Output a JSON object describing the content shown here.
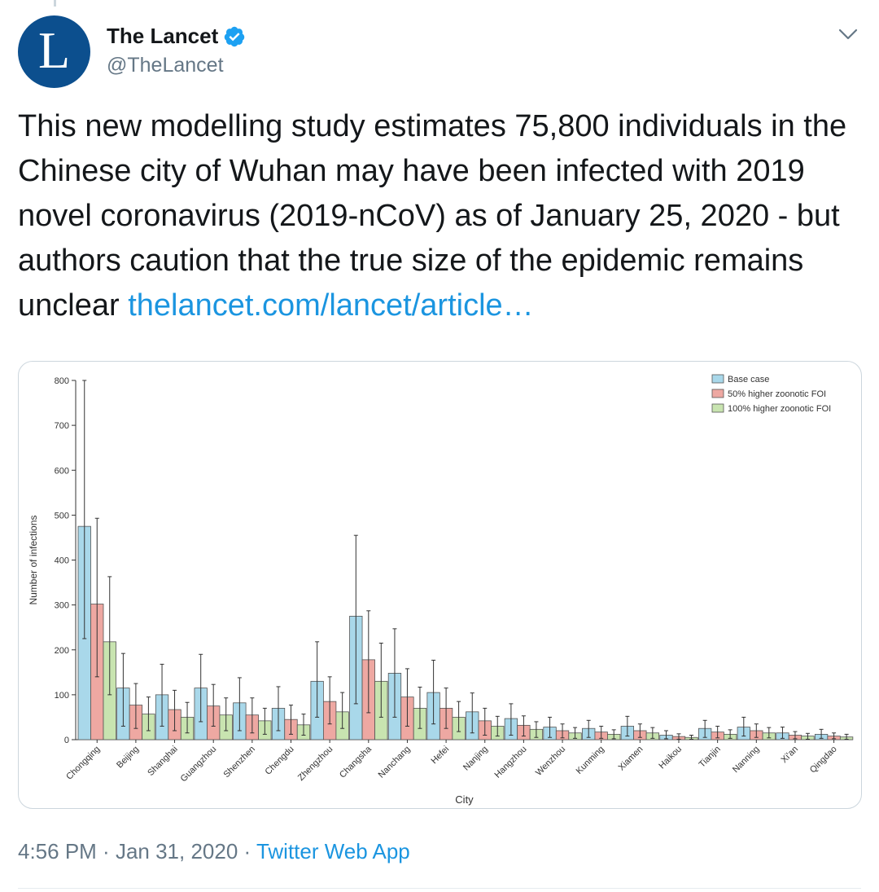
{
  "tweet": {
    "avatar_letter": "L",
    "display_name": "The Lancet",
    "handle": "@TheLancet",
    "verified": true,
    "text": "This new modelling study estimates 75,800 individuals in the Chinese city of Wuhan may have been infected with 2019 novel coronavirus (2019-nCoV) as of January 25, 2020 - but authors caution that the true size of the epidemic remains unclear ",
    "link_text": "thelancet.com/lancet/article…",
    "time": "4:56 PM",
    "separator": " · ",
    "date": "Jan 31, 2020",
    "source": "Twitter Web App",
    "icons": {
      "verified": "verified-badge-icon",
      "menu": "chevron-down-icon"
    }
  },
  "colors": {
    "accent": "#1b95e0",
    "avatar_bg": "#0c4f8e",
    "series": [
      "#a9d8ea",
      "#eea8a2",
      "#c8e4b0"
    ]
  },
  "chart_data": {
    "type": "bar",
    "xlabel": "City",
    "ylabel": "Number of infections",
    "ylim": [
      0,
      800
    ],
    "yticks": [
      0,
      100,
      200,
      300,
      400,
      500,
      600,
      700,
      800
    ],
    "legend_position": "top-right",
    "error_bars": true,
    "categories": [
      "Chongqing",
      "Beijing",
      "Shanghai",
      "Guangzhou",
      "Shenzhen",
      "Chengdu",
      "Zhengzhou",
      "Changsha",
      "Nanchang",
      "Hefei",
      "Nanjing",
      "Hangzhou",
      "Wenzhou",
      "Kunming",
      "Xiamen",
      "Haikou",
      "Tianjin",
      "Nanning",
      "Xi'an",
      "Qingdao"
    ],
    "series": [
      {
        "name": "Base case",
        "values": [
          475,
          115,
          100,
          115,
          82,
          70,
          130,
          275,
          148,
          105,
          62,
          47,
          28,
          25,
          30,
          10,
          25,
          28,
          15,
          12
        ],
        "err_low": [
          225,
          30,
          30,
          40,
          20,
          20,
          50,
          80,
          50,
          35,
          15,
          10,
          5,
          5,
          8,
          2,
          5,
          8,
          3,
          3
        ],
        "err_high": [
          800,
          192,
          168,
          190,
          138,
          118,
          218,
          455,
          247,
          177,
          104,
          80,
          50,
          43,
          52,
          20,
          43,
          50,
          28,
          23
        ]
      },
      {
        "name": "50% higher zoonotic FOI",
        "values": [
          302,
          77,
          67,
          75,
          55,
          45,
          85,
          178,
          95,
          70,
          42,
          32,
          20,
          17,
          20,
          7,
          17,
          20,
          10,
          8
        ],
        "err_low": [
          140,
          25,
          20,
          30,
          15,
          12,
          35,
          60,
          30,
          25,
          10,
          8,
          4,
          3,
          5,
          1,
          4,
          5,
          2,
          2
        ],
        "err_high": [
          493,
          125,
          110,
          123,
          93,
          77,
          140,
          287,
          158,
          115,
          70,
          53,
          35,
          30,
          35,
          13,
          30,
          35,
          18,
          15
        ]
      },
      {
        "name": "100% higher zoonotic FOI",
        "values": [
          218,
          57,
          50,
          55,
          42,
          33,
          62,
          130,
          70,
          50,
          30,
          23,
          15,
          12,
          15,
          5,
          12,
          15,
          8,
          6
        ],
        "err_low": [
          100,
          20,
          15,
          20,
          12,
          10,
          25,
          50,
          25,
          18,
          8,
          5,
          3,
          2,
          3,
          1,
          3,
          4,
          1,
          1
        ],
        "err_high": [
          363,
          95,
          83,
          93,
          70,
          57,
          105,
          215,
          117,
          85,
          52,
          40,
          27,
          22,
          27,
          10,
          22,
          27,
          14,
          12
        ]
      }
    ]
  }
}
